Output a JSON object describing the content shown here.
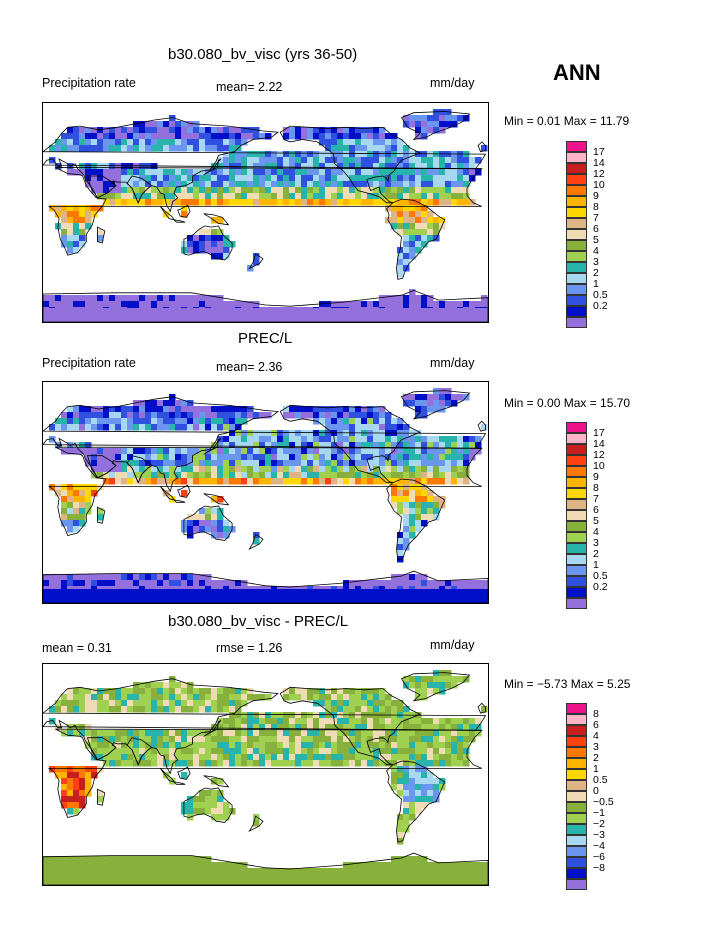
{
  "header": {
    "season": "ANN"
  },
  "colors": {
    "levels": [
      "#9370db",
      "#0010c8",
      "#3050e0",
      "#6a96f0",
      "#a8d8f0",
      "#28b4aa",
      "#a0d050",
      "#88b03c",
      "#f0dcb4",
      "#dcb486",
      "#ffd700",
      "#ffb400",
      "#ff7800",
      "#ff4010",
      "#c81e1e",
      "#ffb4c8",
      "#f0148c"
    ],
    "ocean": "#ffffff",
    "coast": "#000000"
  },
  "panels": [
    {
      "title": "b30.080_bv_visc (yrs 36-50)",
      "left_label": "Precipitation rate",
      "mid_label": "mean=   2.22",
      "right_label": "mm/day",
      "minmax": "Min =    0.01  Max =   11.79",
      "colorbar_labels": [
        "17",
        "14",
        "12",
        "10",
        "9",
        "8",
        "7",
        "6",
        "5",
        "4",
        "3",
        "2",
        "1",
        "0.5",
        "0.2"
      ],
      "field": "model"
    },
    {
      "title": "PREC/L",
      "left_label": "Precipitation rate",
      "mid_label": "mean=   2.36",
      "right_label": "mm/day",
      "minmax": "Min =    0.00  Max =   15.70",
      "colorbar_labels": [
        "17",
        "14",
        "12",
        "10",
        "9",
        "8",
        "7",
        "6",
        "5",
        "4",
        "3",
        "2",
        "1",
        "0.5",
        "0.2"
      ],
      "field": "obs"
    },
    {
      "title": "b30.080_bv_visc - PREC/L",
      "left_label": "mean =    0.31",
      "mid_label": "rmse =    1.26",
      "right_label": "mm/day",
      "minmax": "Min =  −5.73  Max =    5.25",
      "colorbar_labels": [
        "8",
        "6",
        "4",
        "3",
        "2",
        "1",
        "0.5",
        "0",
        "−0.5",
        "−1",
        "−2",
        "−3",
        "−4",
        "−6",
        "−8"
      ],
      "field": "diff"
    }
  ],
  "chart_data": [
    {
      "type": "heatmap",
      "title": "b30.080_bv_visc (yrs 36-50)",
      "variable": "Precipitation rate",
      "units": "mm/day",
      "mean": 2.22,
      "min": 0.01,
      "max": 11.79,
      "contour_levels": [
        0.2,
        0.5,
        1,
        2,
        3,
        4,
        5,
        6,
        7,
        8,
        9,
        10,
        12,
        14,
        17
      ],
      "projection": "cylindrical equidistant, centered on Pacific"
    },
    {
      "type": "heatmap",
      "title": "PREC/L",
      "variable": "Precipitation rate",
      "units": "mm/day",
      "mean": 2.36,
      "min": 0.0,
      "max": 15.7,
      "contour_levels": [
        0.2,
        0.5,
        1,
        2,
        3,
        4,
        5,
        6,
        7,
        8,
        9,
        10,
        12,
        14,
        17
      ],
      "projection": "cylindrical equidistant, centered on Pacific"
    },
    {
      "type": "heatmap",
      "title": "b30.080_bv_visc - PREC/L",
      "units": "mm/day",
      "mean": 0.31,
      "rmse": 1.26,
      "min": -5.73,
      "max": 5.25,
      "contour_levels": [
        -8,
        -6,
        -4,
        -3,
        -2,
        -1,
        -0.5,
        0,
        0.5,
        1,
        2,
        3,
        4,
        6,
        8
      ],
      "projection": "cylindrical equidistant, centered on Pacific"
    }
  ]
}
